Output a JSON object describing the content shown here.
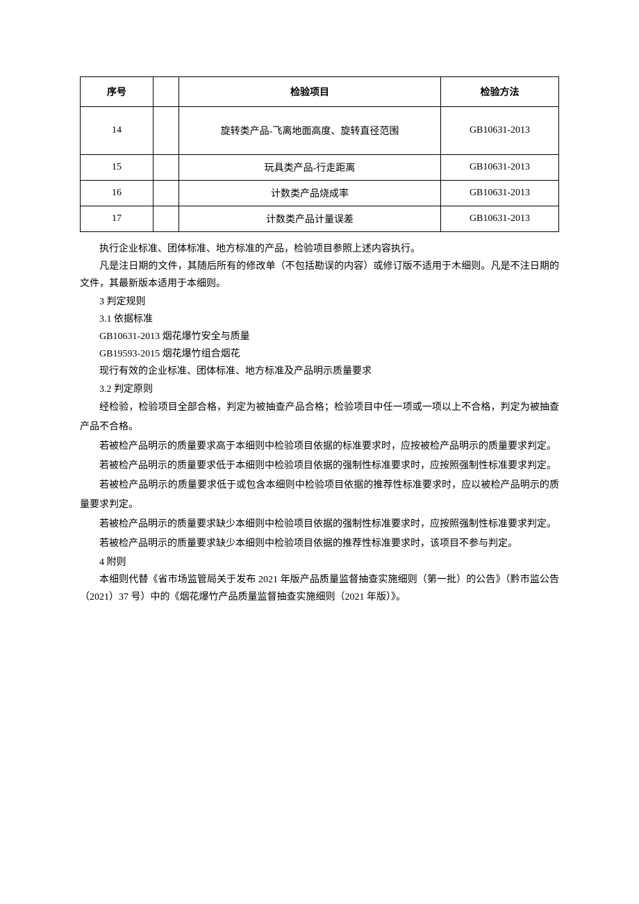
{
  "table": {
    "columns": {
      "seq": "序号",
      "item": "检验项目",
      "method": "检验方法"
    },
    "rows": [
      {
        "seq": "14",
        "item": "旋转类产品-飞离地面高度、旋转直径范围",
        "method": "GB10631-2013",
        "tall": true
      },
      {
        "seq": "15",
        "item": "玩具类产品-行走距离",
        "method": "GB10631-2013",
        "tall": false
      },
      {
        "seq": "16",
        "item": "计数类产品烧成率",
        "method": "GB10631-2013",
        "tall": false
      },
      {
        "seq": "17",
        "item": "计数类产品计量误差",
        "method": "GB10631-2013",
        "tall": false
      }
    ]
  },
  "paragraphs": {
    "p1": "执行企业标准、团体标准、地方标准的产品，检验项目参照上述内容执行。",
    "p2": "凡是注日期的文件，其随后所有的修改单（不包括勘误的内容）或修订版不适用于木细则。凡是不注日期的文件，其最新版本适用于本细则。",
    "p3": "3 判定规则",
    "p4": "3.1 依据标准",
    "p5": "GB10631-2013 烟花爆竹安全与质量",
    "p6": "GB19593-2015 烟花爆竹组合烟花",
    "p7": "现行有效的企业标准、团体标准、地方标准及产品明示质量要求",
    "p8": "3.2  判定原则",
    "p9": "经检验，检验项目全部合格，判定为被抽查产品合格；检验项目中任一项或一项以上不合格，判定为被抽查产品不合格。",
    "p10": "若被检产品明示的质量要求高于本细则中检验项目依据的标准要求时，应按被检产品明示的质量要求判定。",
    "p11": "若被检产品明示的质量要求低于本细则中检验项目依据的强制性标准要求时，应按照强制性标准要求判定。",
    "p12": "若被检产品明示的质量要求低于或包含本细则中检验项目依据的推荐性标准要求时，应以被检产品明示的质量要求判定。",
    "p13": "若被检产品明示的质量要求缺少本细则中检验项目依据的强制性标准要求时，应按照强制性标准要求判定。",
    "p14": "若被检产品明示的质量要求缺少本细则中检验项目依据的推荐性标准要求时，该项目不参与判定。",
    "p15": "4 附则",
    "p16": "本细则代替《省市场监管局关于发布 2021 年版产品质量监督抽查实施细则（第一批）的公告》（黔市监公告（2021）37 号）中的《烟花爆竹产品质量监督抽查实施细则（2021 年版）》。"
  }
}
